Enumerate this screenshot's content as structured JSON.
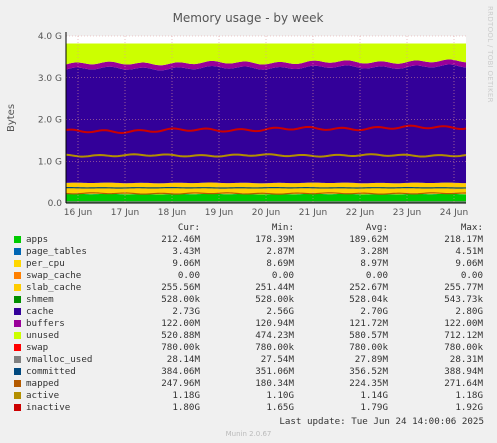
{
  "chart_data": {
    "type": "area",
    "title": "Memory usage - by week",
    "ylabel": "Bytes",
    "ylim": [
      0,
      4000000000
    ],
    "y_ticks": [
      "0.0",
      "1.0 G",
      "2.0 G",
      "3.0 G",
      "4.0 G"
    ],
    "x_ticks": [
      "16 Jun",
      "17 Jun",
      "18 Jun",
      "19 Jun",
      "20 Jun",
      "21 Jun",
      "22 Jun",
      "23 Jun",
      "24 Jun"
    ],
    "grid": true,
    "stacked_series": [
      {
        "name": "apps",
        "color": "#00cc00",
        "value": 212460000
      },
      {
        "name": "page_tables",
        "color": "#0066b3",
        "value": 3430000
      },
      {
        "name": "per_cpu",
        "color": "#ffd700",
        "value": 9060000
      },
      {
        "name": "swap_cache",
        "color": "#ff8000",
        "value": 0
      },
      {
        "name": "slab_cache",
        "color": "#ffcc00",
        "value": 255560000
      },
      {
        "name": "shmem",
        "color": "#008f00",
        "value": 528000
      },
      {
        "name": "cache",
        "color": "#330099",
        "value": 2730000000
      },
      {
        "name": "buffers",
        "color": "#990099",
        "value": 122000000
      },
      {
        "name": "unused",
        "color": "#ccff00",
        "value": 520880000
      },
      {
        "name": "swap",
        "color": "#ff0000",
        "value": 780000
      }
    ],
    "line_series": [
      {
        "name": "vmalloc_used",
        "color": "#808080",
        "value": 28140000
      },
      {
        "name": "committed",
        "color": "#00487d",
        "value": 384060000
      },
      {
        "name": "mapped",
        "color": "#b35a00",
        "value": 247960000
      },
      {
        "name": "active",
        "color": "#b38f00",
        "value": 1180000000
      },
      {
        "name": "inactive",
        "color": "#cc0000",
        "value": 1800000000
      }
    ]
  },
  "legend": {
    "headers": {
      "cur": "Cur:",
      "min": "Min:",
      "avg": "Avg:",
      "max": "Max:"
    },
    "rows": [
      {
        "name": "apps",
        "color": "#00cc00",
        "cur": "212.46M",
        "min": "178.39M",
        "avg": "189.62M",
        "max": "218.17M"
      },
      {
        "name": "page_tables",
        "color": "#0066b3",
        "cur": "3.43M",
        "min": "2.87M",
        "avg": "3.28M",
        "max": "4.51M"
      },
      {
        "name": "per_cpu",
        "color": "#ffd700",
        "cur": "9.06M",
        "min": "8.69M",
        "avg": "8.97M",
        "max": "9.06M"
      },
      {
        "name": "swap_cache",
        "color": "#ff8000",
        "cur": "0.00",
        "min": "0.00",
        "avg": "0.00",
        "max": "0.00"
      },
      {
        "name": "slab_cache",
        "color": "#ffcc00",
        "cur": "255.56M",
        "min": "251.44M",
        "avg": "252.67M",
        "max": "255.77M"
      },
      {
        "name": "shmem",
        "color": "#008f00",
        "cur": "528.00k",
        "min": "528.00k",
        "avg": "528.04k",
        "max": "543.73k"
      },
      {
        "name": "cache",
        "color": "#330099",
        "cur": "2.73G",
        "min": "2.56G",
        "avg": "2.70G",
        "max": "2.80G"
      },
      {
        "name": "buffers",
        "color": "#990099",
        "cur": "122.00M",
        "min": "120.94M",
        "avg": "121.72M",
        "max": "122.00M"
      },
      {
        "name": "unused",
        "color": "#ccff00",
        "cur": "520.88M",
        "min": "474.23M",
        "avg": "580.57M",
        "max": "712.12M"
      },
      {
        "name": "swap",
        "color": "#ff0000",
        "cur": "780.00k",
        "min": "780.00k",
        "avg": "780.00k",
        "max": "780.00k"
      },
      {
        "name": "vmalloc_used",
        "color": "#808080",
        "cur": "28.14M",
        "min": "27.54M",
        "avg": "27.89M",
        "max": "28.31M"
      },
      {
        "name": "committed",
        "color": "#00487d",
        "cur": "384.06M",
        "min": "351.06M",
        "avg": "356.52M",
        "max": "388.94M"
      },
      {
        "name": "mapped",
        "color": "#b35a00",
        "cur": "247.96M",
        "min": "180.34M",
        "avg": "224.35M",
        "max": "271.64M"
      },
      {
        "name": "active",
        "color": "#b38f00",
        "cur": "1.18G",
        "min": "1.10G",
        "avg": "1.14G",
        "max": "1.18G"
      },
      {
        "name": "inactive",
        "color": "#cc0000",
        "cur": "1.80G",
        "min": "1.65G",
        "avg": "1.79G",
        "max": "1.92G"
      }
    ]
  },
  "last_update": "Last update: Tue Jun 24 14:00:06 2025",
  "footer": "Munin 2.0.67",
  "watermark": "RRDTOOL / TOBI OETIKER"
}
